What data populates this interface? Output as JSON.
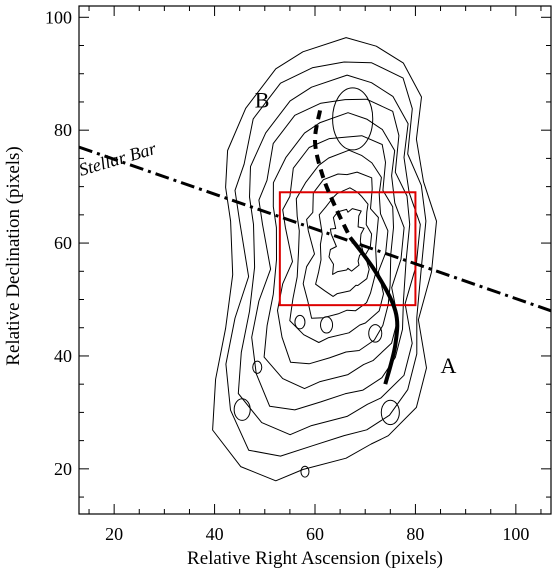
{
  "chart_data": {
    "type": "contour",
    "title": "",
    "xlabel": "Relative Right Ascension (pixels)",
    "ylabel": "Relative Declination (pixels)",
    "xlim": [
      13,
      107
    ],
    "ylim": [
      12,
      102
    ],
    "xticks": [
      20,
      40,
      60,
      80,
      100
    ],
    "yticks": [
      20,
      40,
      60,
      80,
      100
    ],
    "xtick_labels": [
      "20",
      "40",
      "60",
      "80",
      "100"
    ],
    "ytick_labels": [
      "20",
      "40",
      "60",
      "80",
      "100"
    ],
    "grid": false,
    "legend": "none",
    "contours": {
      "color": "#000000",
      "levels": 10,
      "peak": [
        67,
        61
      ],
      "outer_extent": {
        "x": [
          40,
          83
        ],
        "y": [
          18,
          96
        ]
      }
    },
    "box": {
      "color": "#dd0000",
      "x": [
        53,
        80
      ],
      "y": [
        49,
        69
      ]
    },
    "stellar_bar": {
      "label": "Stellar Bar",
      "style": "dash-dot",
      "points": [
        [
          13,
          77
        ],
        [
          107,
          48
        ]
      ]
    },
    "curves": [
      {
        "style": "dashed",
        "points": [
          [
            61,
            83.5
          ],
          [
            60,
            78
          ],
          [
            61.5,
            72
          ],
          [
            64,
            66.5
          ],
          [
            67,
            61
          ]
        ]
      },
      {
        "style": "solid",
        "points": [
          [
            67,
            61
          ],
          [
            72,
            55
          ],
          [
            76,
            48
          ],
          [
            76,
            42
          ],
          [
            74,
            35
          ]
        ]
      }
    ],
    "annotations": [
      {
        "text": "B",
        "x": 48,
        "y": 84
      },
      {
        "text": "A",
        "x": 85,
        "y": 37
      }
    ]
  }
}
